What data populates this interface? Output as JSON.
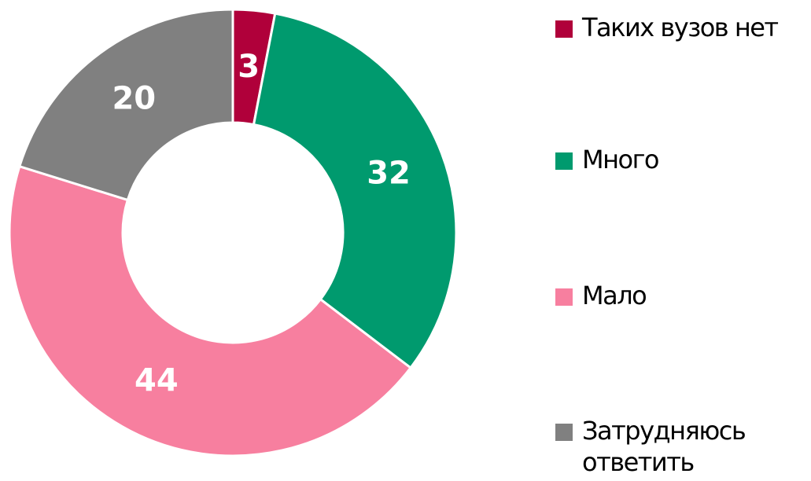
{
  "chart_data": {
    "type": "donut",
    "categories": [
      "Таких вузов нет",
      "Много",
      "Мало",
      "Затрудняюсь ответить"
    ],
    "values": [
      3,
      32,
      44,
      20
    ],
    "colors": [
      "#b0003a",
      "#009a6e",
      "#f77f9f",
      "#808080"
    ],
    "legend": "right"
  }
}
